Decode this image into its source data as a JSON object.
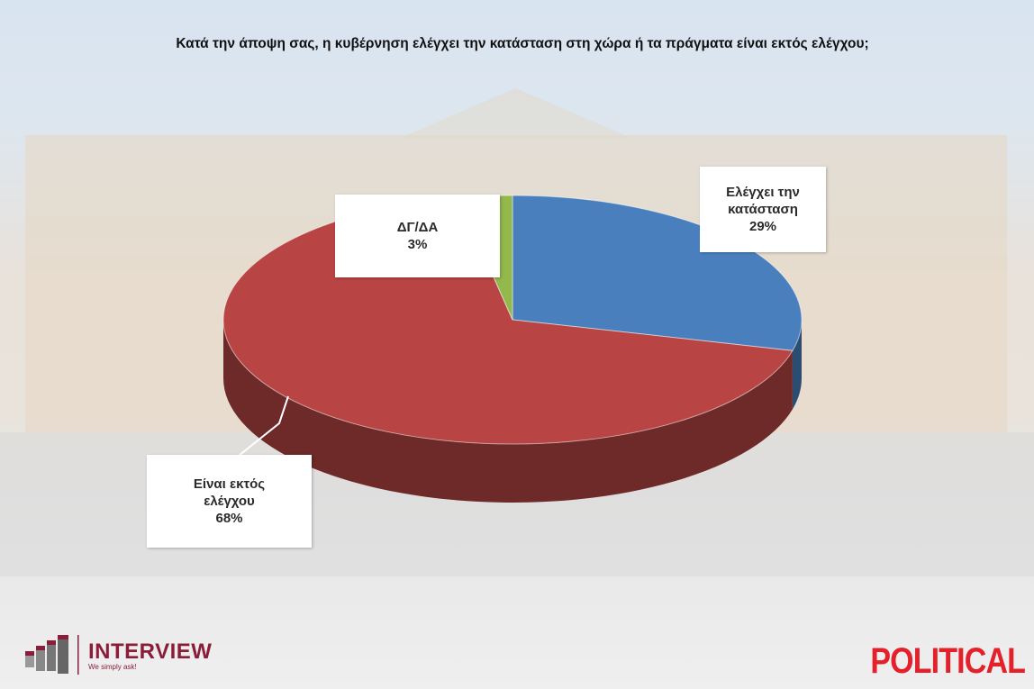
{
  "chart_data": {
    "type": "pie",
    "title": "Κατά την άποψη σας, η κυβέρνηση ελέγχει την κατάσταση στη χώρα ή τα πράγματα είναι εκτός ελέγχου;",
    "slices": [
      {
        "label_lines": [
          "Ελέγχει την",
          "κατάσταση"
        ],
        "value": 29,
        "value_label": "29%",
        "color": "#4a7fbe"
      },
      {
        "label_lines": [
          "Είναι εκτός",
          "ελέγχου"
        ],
        "value": 68,
        "value_label": "68%",
        "color": "#b84444"
      },
      {
        "label_lines": [
          "ΔΓ/ΔΑ"
        ],
        "value": 3,
        "value_label": "3%",
        "color": "#93b84c"
      }
    ],
    "style": "3d"
  },
  "logos": {
    "interview": {
      "name": "INTERVIEW",
      "tagline": "We simply ask!"
    },
    "political": "POLITICAL"
  }
}
